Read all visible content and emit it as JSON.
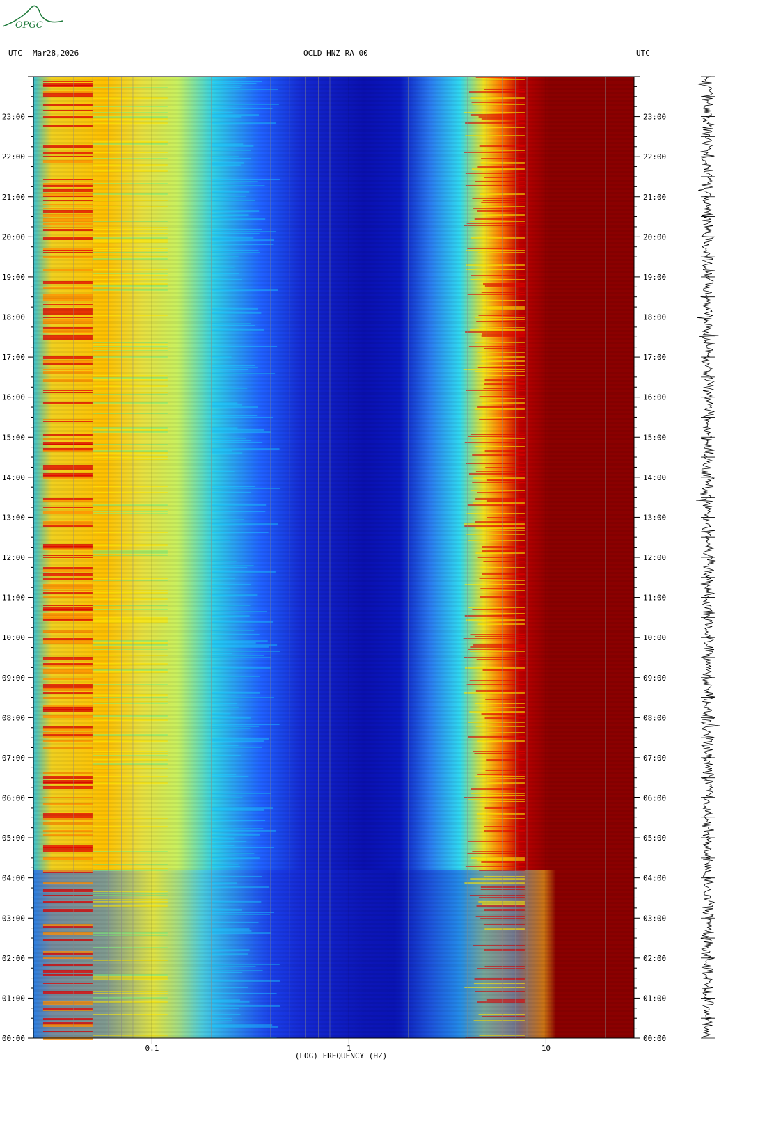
{
  "header": {
    "left_tz": "UTC",
    "date": "Mar28,2026",
    "station": "OCLD HNZ RA 00",
    "right_tz": "UTC"
  },
  "logo": {
    "text": "OPGC"
  },
  "colors": {
    "dark_blue": "#0000a0",
    "blue": "#1a3cff",
    "cyan": "#19c8ff",
    "green": "#7cf07c",
    "yellow": "#ffe600",
    "orange": "#ff8c00",
    "red": "#e10000",
    "dark_red": "#8b0000"
  },
  "chart_data": {
    "type": "heatmap",
    "xlabel": "(LOG) FREQUENCY (HZ)",
    "x_scale": "log",
    "xlim": [
      0.025,
      28
    ],
    "x_ticks": [
      {
        "value": 0.1,
        "label": "0.1"
      },
      {
        "value": 1,
        "label": "1"
      },
      {
        "value": 10,
        "label": "10"
      }
    ],
    "y_hours": [
      "00:00",
      "01:00",
      "02:00",
      "03:00",
      "04:00",
      "05:00",
      "06:00",
      "07:00",
      "08:00",
      "09:00",
      "10:00",
      "11:00",
      "12:00",
      "13:00",
      "14:00",
      "15:00",
      "16:00",
      "17:00",
      "18:00",
      "19:00",
      "20:00",
      "21:00",
      "22:00",
      "23:00"
    ],
    "ylim_hours": [
      0,
      24
    ],
    "spectral_bands": [
      {
        "from_hz": 0.025,
        "to_hz": 0.07,
        "level": "yellow-red"
      },
      {
        "from_hz": 0.07,
        "to_hz": 0.2,
        "level": "yellow-green"
      },
      {
        "from_hz": 0.2,
        "to_hz": 0.5,
        "level": "cyan-blue"
      },
      {
        "from_hz": 0.5,
        "to_hz": 2.0,
        "level": "dark blue"
      },
      {
        "from_hz": 2.0,
        "to_hz": 4.0,
        "level": "cyan"
      },
      {
        "from_hz": 4.0,
        "to_hz": 7.5,
        "level": "yellow-red"
      },
      {
        "from_hz": 7.5,
        "to_hz": 28,
        "level": "dark red"
      }
    ],
    "grid": "vertical lines at decade subdivisions"
  }
}
